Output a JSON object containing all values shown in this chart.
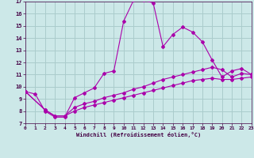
{
  "xlabel": "Windchill (Refroidissement éolien,°C)",
  "bg_color": "#cce8e8",
  "grid_color": "#aacccc",
  "line_color": "#aa00aa",
  "xlim": [
    0,
    23
  ],
  "ylim": [
    7,
    17
  ],
  "yticks": [
    7,
    8,
    9,
    10,
    11,
    12,
    13,
    14,
    15,
    16,
    17
  ],
  "xticks": [
    0,
    1,
    2,
    3,
    4,
    5,
    6,
    7,
    8,
    9,
    10,
    11,
    12,
    13,
    14,
    15,
    16,
    17,
    18,
    19,
    20,
    21,
    22,
    23
  ],
  "series1_x": [
    0,
    1,
    2,
    3,
    4,
    5,
    6,
    7,
    8,
    9,
    10,
    11,
    12,
    13,
    14,
    15,
    16,
    17,
    18,
    19,
    20,
    21,
    22,
    23
  ],
  "series1_y": [
    9.6,
    9.4,
    8.0,
    7.5,
    7.5,
    9.1,
    9.5,
    9.9,
    11.1,
    11.3,
    15.4,
    17.1,
    17.1,
    16.9,
    13.3,
    14.3,
    14.9,
    14.5,
    13.7,
    12.2,
    10.8,
    11.3,
    11.5,
    11.0
  ],
  "series2_x": [
    0,
    2,
    3,
    4,
    5,
    6,
    7,
    8,
    9,
    10,
    11,
    12,
    13,
    14,
    15,
    16,
    17,
    18,
    19,
    20,
    21,
    22,
    23
  ],
  "series2_y": [
    9.6,
    8.1,
    7.6,
    7.6,
    8.3,
    8.6,
    8.8,
    9.1,
    9.3,
    9.5,
    9.8,
    10.0,
    10.3,
    10.6,
    10.8,
    11.0,
    11.2,
    11.4,
    11.6,
    11.4,
    10.8,
    11.1,
    11.0
  ],
  "series3_x": [
    0,
    2,
    3,
    4,
    5,
    6,
    7,
    8,
    9,
    10,
    11,
    12,
    13,
    14,
    15,
    16,
    17,
    18,
    19,
    20,
    21,
    22,
    23
  ],
  "series3_y": [
    9.6,
    8.1,
    7.6,
    7.6,
    8.0,
    8.3,
    8.5,
    8.7,
    8.9,
    9.1,
    9.3,
    9.5,
    9.7,
    9.9,
    10.1,
    10.3,
    10.5,
    10.6,
    10.7,
    10.6,
    10.6,
    10.7,
    10.8
  ]
}
